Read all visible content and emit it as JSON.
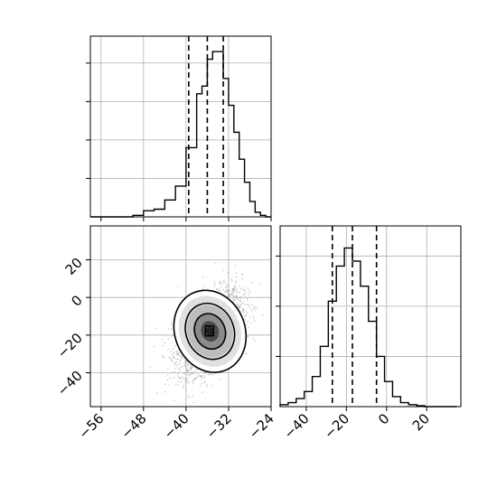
{
  "chart_data": [
    {
      "type": "histogram",
      "panel": "top-left",
      "xlim": [
        -58,
        -24
      ],
      "ylim": [
        0,
        0.235
      ],
      "bin_edges": [
        -58,
        -56,
        -54,
        -52,
        -50,
        -48,
        -46,
        -44,
        -42,
        -40,
        -38,
        -37,
        -36,
        -35,
        -34,
        -33,
        -32,
        -31,
        -30,
        -29,
        -28,
        -27,
        -26,
        -25,
        -24
      ],
      "counts": [
        0,
        0,
        0,
        0,
        0.002,
        0.008,
        0.01,
        0.022,
        0.04,
        0.09,
        0.16,
        0.17,
        0.205,
        0.215,
        0.215,
        0.18,
        0.145,
        0.11,
        0.075,
        0.045,
        0.02,
        0.006,
        0.002,
        0
      ],
      "bar_edges_note": "",
      "quantiles": [
        -39.5,
        -36.0,
        -33.0
      ],
      "grid": true
    },
    {
      "type": "histogram",
      "panel": "bottom-right",
      "xlim": [
        -53,
        37
      ],
      "ylim": [
        0,
        0.18
      ],
      "bin_edges": [
        -53,
        -49,
        -45,
        -41,
        -37,
        -33,
        -29,
        -25,
        -21,
        -17,
        -13,
        -9,
        -5,
        -1,
        3,
        7,
        11,
        15,
        19,
        23,
        27,
        31,
        35
      ],
      "counts": [
        0.002,
        0.004,
        0.008,
        0.015,
        0.03,
        0.06,
        0.105,
        0.14,
        0.158,
        0.145,
        0.12,
        0.085,
        0.05,
        0.025,
        0.01,
        0.004,
        0.002,
        0.001,
        0,
        0,
        0,
        0
      ],
      "quantiles": [
        -27.0,
        -17.0,
        -5.0
      ],
      "grid": true
    },
    {
      "type": "scatter",
      "panel": "bottom-left",
      "xlim": [
        -58,
        -24
      ],
      "ylim": [
        -58,
        38
      ],
      "center": [
        -35.5,
        -18
      ],
      "std": [
        3.0,
        11.0
      ],
      "correlation": 0.5,
      "n_points": 2600,
      "contour_levels": 3,
      "grid": true
    }
  ],
  "axes": {
    "top_hist_x_ticks": [
      "−56",
      "−48",
      "−40",
      "−32",
      "−24"
    ],
    "scatter_x_ticks": [
      "−56",
      "−48",
      "−40",
      "−32",
      "−24"
    ],
    "scatter_y_ticks": [
      "20",
      "0",
      "−20",
      "−40"
    ],
    "right_hist_x_ticks": [
      "−40",
      "−20",
      "0",
      "20"
    ]
  }
}
